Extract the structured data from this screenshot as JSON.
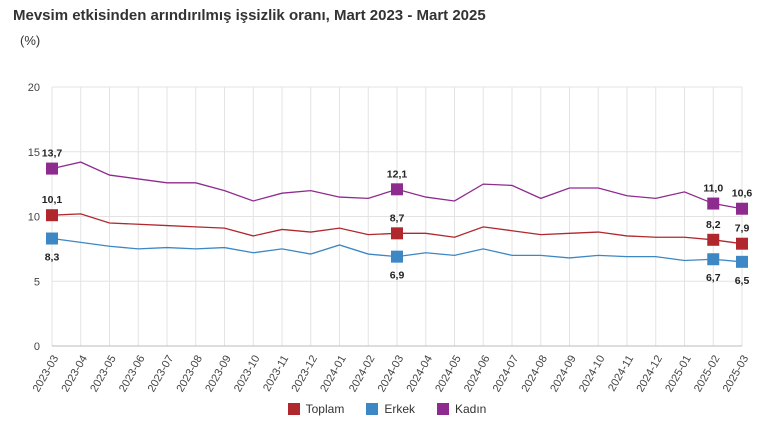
{
  "chart_data": {
    "type": "line",
    "title": "Mevsim etkisinden arındırılmış işsizlik oranı, Mart 2023 - Mart 2025",
    "unit_label": "(%)",
    "ylim": [
      0,
      20
    ],
    "yticks": [
      "0",
      "5",
      "10",
      "15",
      "20"
    ],
    "grid": "vertical and horizontal",
    "legend_position": "bottom-center",
    "x": [
      "2023-03",
      "2023-04",
      "2023-05",
      "2023-06",
      "2023-07",
      "2023-08",
      "2023-09",
      "2023-10",
      "2023-11",
      "2023-12",
      "2024-01",
      "2024-02",
      "2024-03",
      "2024-04",
      "2024-05",
      "2024-06",
      "2024-07",
      "2024-08",
      "2024-09",
      "2024-10",
      "2024-11",
      "2024-12",
      "2025-01",
      "2025-02",
      "2025-03"
    ],
    "series": [
      {
        "name": "Toplam",
        "color": "#b0282e",
        "values": [
          10.1,
          10.2,
          9.5,
          9.4,
          9.3,
          9.2,
          9.1,
          8.5,
          9.0,
          8.8,
          9.1,
          8.6,
          8.7,
          8.7,
          8.4,
          9.2,
          8.9,
          8.6,
          8.7,
          8.8,
          8.5,
          8.4,
          8.4,
          8.2,
          7.9
        ],
        "markers": [
          {
            "index": 0,
            "label": "10,1"
          },
          {
            "index": 12,
            "label": "8,7"
          },
          {
            "index": 23,
            "label": "8,2"
          },
          {
            "index": 24,
            "label": "7,9"
          }
        ]
      },
      {
        "name": "Erkek",
        "color": "#3d87c5",
        "values": [
          8.3,
          8.0,
          7.7,
          7.5,
          7.6,
          7.5,
          7.6,
          7.2,
          7.5,
          7.1,
          7.8,
          7.1,
          6.9,
          7.2,
          7.0,
          7.5,
          7.0,
          7.0,
          6.8,
          7.0,
          6.9,
          6.9,
          6.6,
          6.7,
          6.5
        ],
        "markers": [
          {
            "index": 0,
            "label": "8,3"
          },
          {
            "index": 12,
            "label": "6,9"
          },
          {
            "index": 23,
            "label": "6,7"
          },
          {
            "index": 24,
            "label": "6,5"
          }
        ]
      },
      {
        "name": "Kadın",
        "color": "#8e2b8f",
        "values": [
          13.7,
          14.2,
          13.2,
          12.9,
          12.6,
          12.6,
          12.0,
          11.2,
          11.8,
          12.0,
          11.5,
          11.4,
          12.1,
          11.5,
          11.2,
          12.5,
          12.4,
          11.4,
          12.2,
          12.2,
          11.6,
          11.4,
          11.9,
          11.0,
          10.6
        ],
        "markers": [
          {
            "index": 0,
            "label": "13,7"
          },
          {
            "index": 12,
            "label": "12,1"
          },
          {
            "index": 23,
            "label": "11,0"
          },
          {
            "index": 24,
            "label": "10,6"
          }
        ]
      }
    ]
  }
}
